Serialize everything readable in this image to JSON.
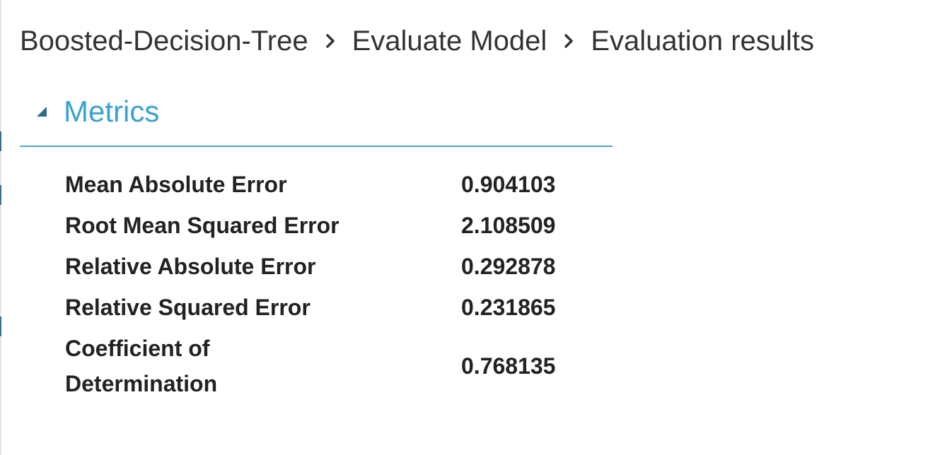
{
  "breadcrumb": {
    "items": [
      "Boosted-Decision-Tree",
      "Evaluate Model",
      "Evaluation results"
    ],
    "separator_icon": "chevron-right-icon"
  },
  "section": {
    "title": "Metrics",
    "collapse_icon": "collapse-triangle-icon",
    "accent_color": "#3ba1d0"
  },
  "metrics": [
    {
      "name": "Mean Absolute Error",
      "value": "0.904103"
    },
    {
      "name": "Root Mean Squared Error",
      "value": "2.108509"
    },
    {
      "name": "Relative Absolute Error",
      "value": "0.292878"
    },
    {
      "name": "Relative Squared Error",
      "value": "0.231865"
    },
    {
      "name": "Coefficient of Determination",
      "value": "0.768135"
    }
  ]
}
